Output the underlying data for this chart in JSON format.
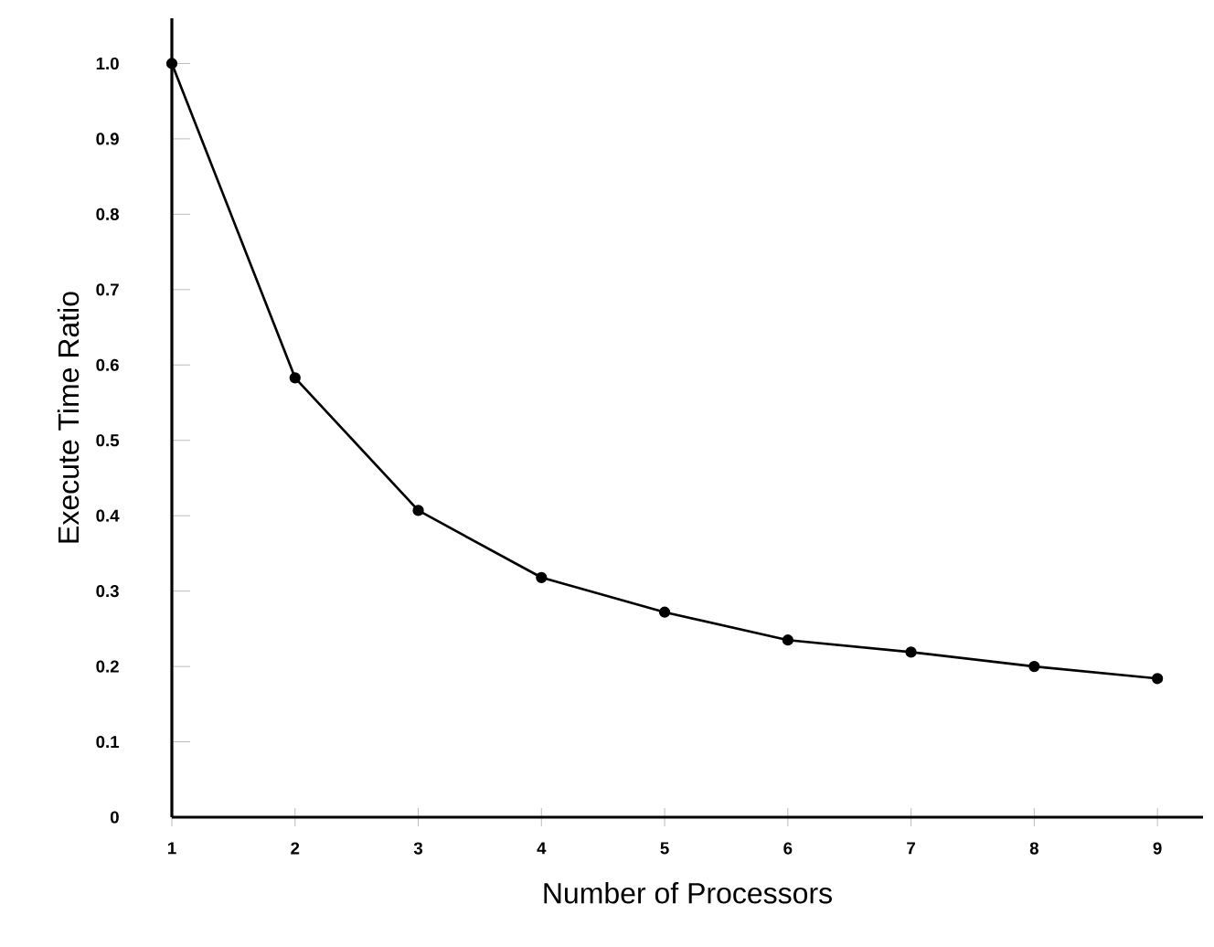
{
  "chart_data": {
    "type": "line",
    "xlabel": "Number of Processors",
    "ylabel": "Execute Time Ratio",
    "x": [
      1,
      2,
      3,
      4,
      5,
      6,
      7,
      8,
      9
    ],
    "series": [
      {
        "color": "#000000",
        "values": [
          1.0,
          0.583,
          0.407,
          0.318,
          0.272,
          0.235,
          0.219,
          0.2,
          0.184
        ]
      }
    ],
    "xlim": [
      1,
      9.37
    ],
    "ylim": [
      0,
      1.06
    ],
    "xticks": [
      1,
      2,
      3,
      4,
      5,
      6,
      7,
      8,
      9
    ],
    "yticks": [
      {
        "value": 0,
        "label": "0"
      },
      {
        "value": 0.1,
        "label": "0.1"
      },
      {
        "value": 0.2,
        "label": "0.2"
      },
      {
        "value": 0.3,
        "label": "0.3"
      },
      {
        "value": 0.4,
        "label": "0.4"
      },
      {
        "value": 0.5,
        "label": "0.5"
      },
      {
        "value": 0.6,
        "label": "0.6"
      },
      {
        "value": 0.7,
        "label": "0.7"
      },
      {
        "value": 0.8,
        "label": "0.8"
      },
      {
        "value": 0.9,
        "label": "0.9"
      },
      {
        "value": 1.0,
        "label": "1.0"
      }
    ],
    "grid": false,
    "marker": "circle",
    "line_style": "solid"
  }
}
